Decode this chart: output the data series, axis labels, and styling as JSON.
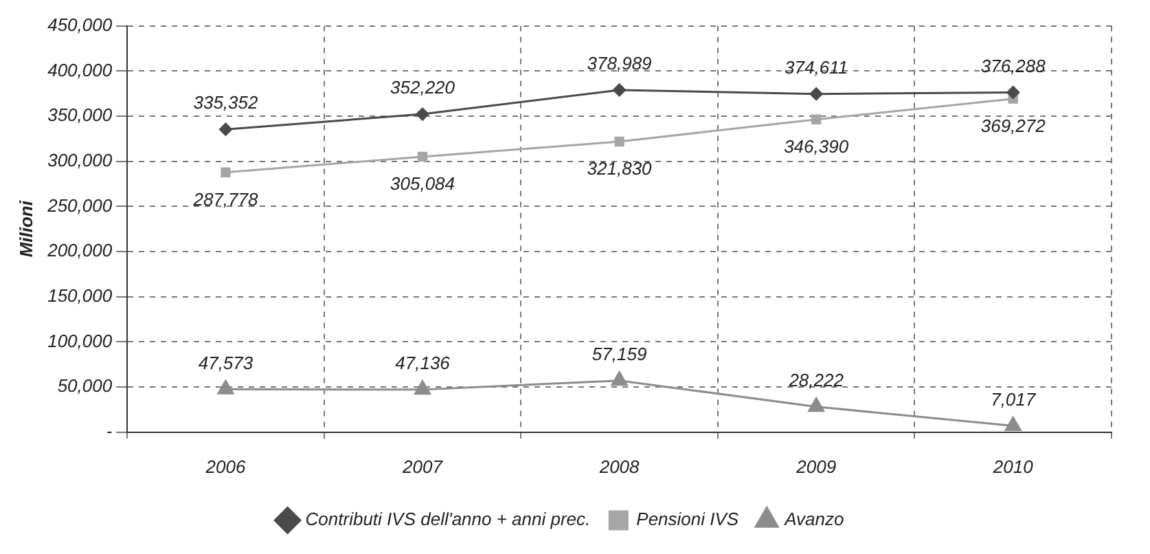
{
  "chart_data": {
    "type": "line",
    "ylabel": "Milioni",
    "categories": [
      "2006",
      "2007",
      "2008",
      "2009",
      "2010"
    ],
    "ylim": [
      0,
      450000
    ],
    "yticks": [
      {
        "value": 0,
        "label": "-"
      },
      {
        "value": 50000,
        "label": "50,000"
      },
      {
        "value": 100000,
        "label": "100,000"
      },
      {
        "value": 150000,
        "label": "150,000"
      },
      {
        "value": 200000,
        "label": "200,000"
      },
      {
        "value": 250000,
        "label": "250,000"
      },
      {
        "value": 300000,
        "label": "300,000"
      },
      {
        "value": 350000,
        "label": "350,000"
      },
      {
        "value": 400000,
        "label": "400,000"
      },
      {
        "value": 450000,
        "label": "450,000"
      }
    ],
    "grid": true,
    "legend": "bottom",
    "line_style": "solid",
    "series": [
      {
        "name": "Contributi IVS dell'anno + anni prec.",
        "color": "#4a4a4a",
        "marker": "diamond",
        "values": [
          335352,
          352220,
          378989,
          374611,
          376288
        ],
        "value_labels": [
          "335,352",
          "352,220",
          "378,989",
          "374,611",
          "376,288"
        ]
      },
      {
        "name": "Pensioni IVS",
        "color": "#a6a6a6",
        "marker": "square",
        "values": [
          287778,
          305084,
          321830,
          346390,
          369272
        ],
        "value_labels": [
          "287,778",
          "305,084",
          "321,830",
          "346,390",
          "369,272"
        ]
      },
      {
        "name": "Avanzo",
        "color": "#8c8c8c",
        "marker": "triangle",
        "values": [
          47573,
          47136,
          57159,
          28222,
          7017
        ],
        "value_labels": [
          "47,573",
          "47,136",
          "57,159",
          "28,222",
          "7,017"
        ]
      }
    ]
  }
}
